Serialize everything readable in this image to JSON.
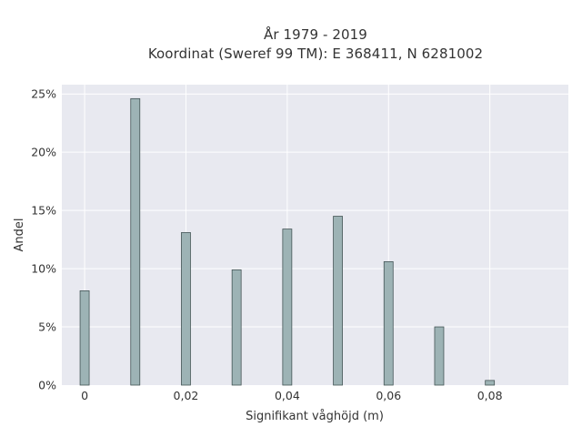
{
  "chart_data": {
    "type": "bar",
    "title_line1": "År 1979 - 2019",
    "title_line2": "Koordinat (Sweref 99 TM): E 368411, N 6281002",
    "xlabel": "Signifikant våghöjd (m)",
    "ylabel": "Andel",
    "x": [
      0,
      0.01,
      0.02,
      0.03,
      0.04,
      0.05,
      0.06,
      0.07,
      0.08
    ],
    "values": [
      8.1,
      24.6,
      13.1,
      9.9,
      13.4,
      14.5,
      10.6,
      5.0,
      0.4
    ],
    "xlim": [
      -0.0045,
      0.0955
    ],
    "ylim": [
      0,
      25.8
    ],
    "xticks": [
      0,
      0.02,
      0.04,
      0.06,
      0.08
    ],
    "xtick_labels": [
      "0",
      "0,02",
      "0,04",
      "0,06",
      "0,08"
    ],
    "yticks": [
      0,
      5,
      10,
      15,
      20,
      25
    ],
    "ytick_labels": [
      "0%",
      "5%",
      "10%",
      "15%",
      "20%",
      "25%"
    ],
    "grid": true,
    "colors": {
      "bar_fill": "#9db3b5",
      "bar_edge": "#445556",
      "plot_bg": "#e8e9f0",
      "grid": "#ffffff"
    }
  }
}
